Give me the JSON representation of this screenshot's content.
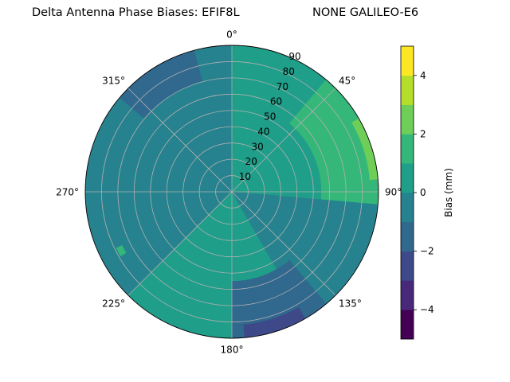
{
  "chart_data": {
    "type": "polar-contour",
    "title_left": "Delta Antenna Phase Biases: EFIF8L",
    "title_right": "NONE GALILEO-E6",
    "angular_tick_labels": [
      "0°",
      "45°",
      "90°",
      "135°",
      "180°",
      "225°",
      "270°",
      "315°"
    ],
    "angular_ticks_deg": [
      0,
      45,
      90,
      135,
      180,
      225,
      270,
      315
    ],
    "radial_tick_labels": [
      "10",
      "20",
      "30",
      "40",
      "50",
      "60",
      "70",
      "80",
      "90"
    ],
    "radial_ticks": [
      10,
      20,
      30,
      40,
      50,
      60,
      70,
      80,
      90
    ],
    "rlim": [
      0,
      90
    ],
    "theta_zero": "top",
    "theta_direction": "clockwise",
    "grid": true,
    "colorbar": {
      "label": "Bias (mm)",
      "range": [
        -5,
        5
      ],
      "levels": [
        -5,
        -4,
        -3,
        -2,
        -1,
        0,
        1,
        2,
        3,
        4,
        5
      ],
      "tick_labels": [
        "−4",
        "−2",
        "0",
        "2",
        "4"
      ],
      "ticks": [
        -4,
        -2,
        0,
        2,
        4
      ],
      "colors": [
        "#440154",
        "#482878",
        "#3e4989",
        "#31688e",
        "#26828e",
        "#1f9e89",
        "#35b779",
        "#6ece58",
        "#b5de2b",
        "#fde725"
      ]
    },
    "field_regions": [
      {
        "bias_range": [
          0,
          1
        ],
        "description": "background"
      },
      {
        "bias_range": [
          -1,
          0
        ],
        "az_range": [
          225,
          360
        ],
        "zen_range": [
          0,
          90
        ]
      },
      {
        "bias_range": [
          -2,
          -1
        ],
        "az_range": [
          310,
          345
        ],
        "zen_range": [
          70,
          90
        ]
      },
      {
        "bias_range": [
          1,
          2
        ],
        "az_range": [
          40,
          95
        ],
        "zen_range": [
          55,
          90
        ]
      },
      {
        "bias_range": [
          2,
          3
        ],
        "az_range": [
          60,
          85
        ],
        "zen_range": [
          85,
          90
        ]
      },
      {
        "bias_range": [
          -1,
          0
        ],
        "az_range": [
          95,
          150
        ],
        "zen_range": [
          0,
          90
        ]
      },
      {
        "bias_range": [
          -2,
          -1
        ],
        "az_range": [
          140,
          180
        ],
        "zen_range": [
          55,
          90
        ]
      },
      {
        "bias_range": [
          -3,
          -2
        ],
        "az_range": [
          150,
          175
        ],
        "zen_range": [
          82,
          90
        ]
      },
      {
        "bias_range": [
          1,
          2
        ],
        "az_range": [
          240,
          244
        ],
        "zen_range": [
          75,
          79
        ]
      }
    ]
  }
}
